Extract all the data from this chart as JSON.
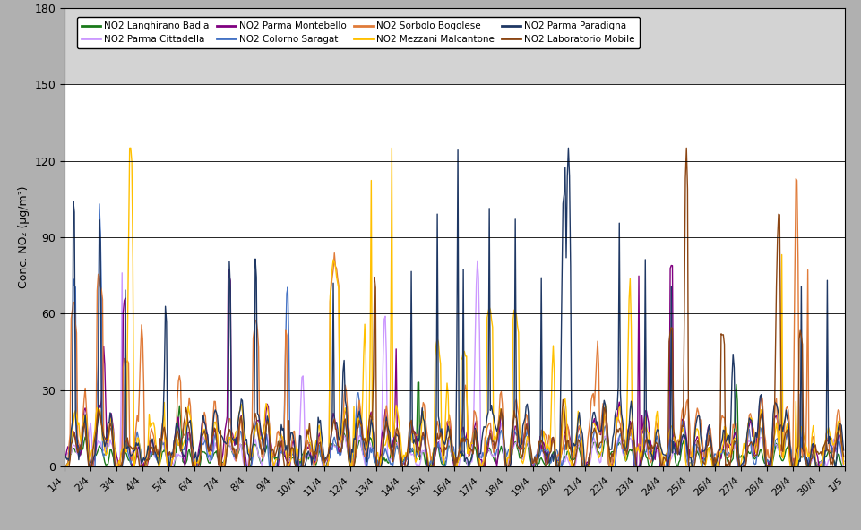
{
  "title": "",
  "ylabel": "Conc. NO₂ (µg/m³)",
  "ylim": [
    0,
    180
  ],
  "yticks": [
    0,
    30,
    60,
    90,
    120,
    150,
    180
  ],
  "limit_line": 150,
  "series": [
    {
      "label": "NO2 Langhirano Badia",
      "color": "#1a7a1a",
      "lw": 1.0
    },
    {
      "label": "NO2 Parma Cittadella",
      "color": "#cc99ff",
      "lw": 1.0
    },
    {
      "label": "NO2 Parma Montebello",
      "color": "#800080",
      "lw": 1.0
    },
    {
      "label": "NO2 Colorno Saragat",
      "color": "#4472c4",
      "lw": 1.0
    },
    {
      "label": "NO2 Sorbolo Bogolese",
      "color": "#e07b39",
      "lw": 1.0
    },
    {
      "label": "NO2 Mezzani Malcantone",
      "color": "#ffc000",
      "lw": 1.0
    },
    {
      "label": "NO2 Parma Paradigna",
      "color": "#1f3864",
      "lw": 1.0
    },
    {
      "label": "NO2 Laboratorio Mobile",
      "color": "#8b4513",
      "lw": 1.0
    }
  ],
  "xtick_labels": [
    "1/4",
    "2/4",
    "3/4",
    "4/4",
    "5/4",
    "6/4",
    "7/4",
    "8/4",
    "9/4",
    "10/4",
    "11/4",
    "12/4",
    "13/4",
    "14/4",
    "15/4",
    "16/4",
    "17/4",
    "18/4",
    "19/4",
    "20/4",
    "21/4",
    "22/4",
    "23/4",
    "24/4",
    "25/4",
    "26/4",
    "27/4",
    "28/4",
    "29/4",
    "30/4",
    "1/5"
  ],
  "n_days": 30,
  "hours_per_day": 24,
  "random_seed": 42,
  "fig_bg": "#b0b0b0",
  "plot_bg_low": "#ffffff",
  "plot_bg_high": "#d3d3d3"
}
